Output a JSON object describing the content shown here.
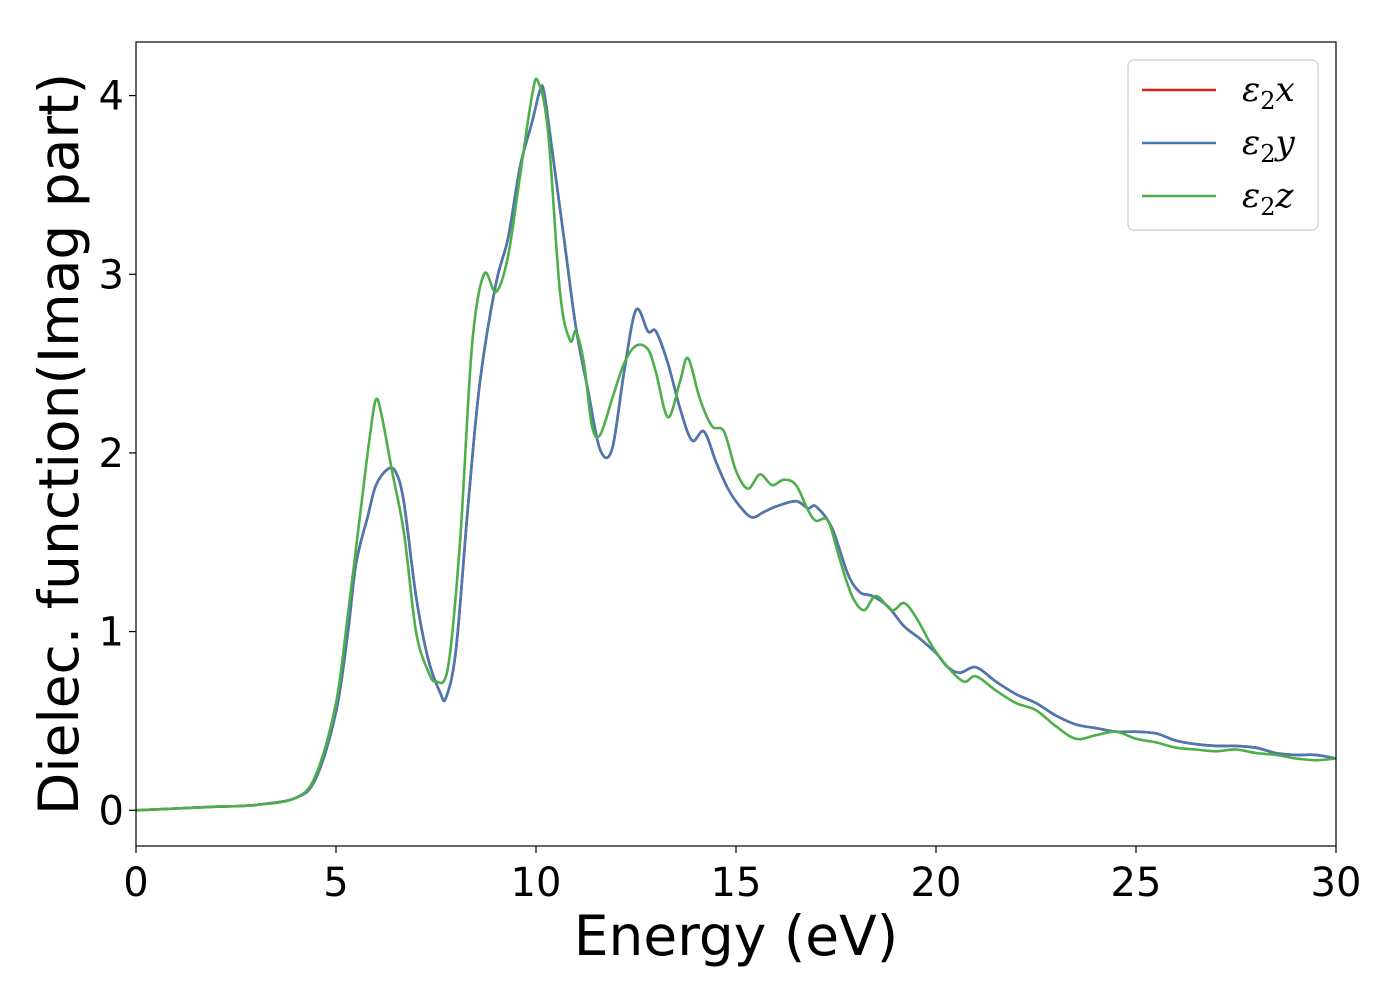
{
  "chart_data": {
    "type": "line",
    "xlabel": "Energy (eV)",
    "ylabel": "Dielec. function(Imag part)",
    "xlim": [
      0,
      30
    ],
    "ylim": [
      -0.2,
      4.3
    ],
    "xticks": [
      0,
      5,
      10,
      15,
      20,
      25,
      30
    ],
    "xtick_labels": [
      "0",
      "5",
      "10",
      "15",
      "20",
      "25",
      "30"
    ],
    "yticks": [
      0,
      1,
      2,
      3,
      4
    ],
    "ytick_labels": [
      "0",
      "1",
      "2",
      "3",
      "4"
    ],
    "grid": false,
    "legend_position": "top-right",
    "series": [
      {
        "key": "x",
        "name": "ε2x",
        "legend": {
          "symbol": "ε",
          "sub": "2",
          "axis": "x"
        },
        "color": "#e41a1c",
        "points": [
          [
            0,
            0.0
          ],
          [
            1,
            0.01
          ],
          [
            2,
            0.02
          ],
          [
            3,
            0.03
          ],
          [
            4,
            0.07
          ],
          [
            4.5,
            0.18
          ],
          [
            5,
            0.55
          ],
          [
            5.3,
            1.0
          ],
          [
            5.5,
            1.38
          ],
          [
            5.8,
            1.65
          ],
          [
            6.0,
            1.82
          ],
          [
            6.3,
            1.91
          ],
          [
            6.5,
            1.89
          ],
          [
            6.7,
            1.72
          ],
          [
            7.0,
            1.2
          ],
          [
            7.3,
            0.85
          ],
          [
            7.6,
            0.66
          ],
          [
            7.75,
            0.63
          ],
          [
            8.0,
            0.9
          ],
          [
            8.3,
            1.7
          ],
          [
            8.6,
            2.4
          ],
          [
            9.0,
            2.95
          ],
          [
            9.3,
            3.2
          ],
          [
            9.6,
            3.6
          ],
          [
            9.9,
            3.85
          ],
          [
            10.1,
            4.03
          ],
          [
            10.2,
            4.02
          ],
          [
            10.4,
            3.7
          ],
          [
            10.7,
            3.2
          ],
          [
            11.0,
            2.7
          ],
          [
            11.3,
            2.35
          ],
          [
            11.6,
            2.02
          ],
          [
            11.9,
            2.02
          ],
          [
            12.2,
            2.45
          ],
          [
            12.5,
            2.8
          ],
          [
            12.8,
            2.68
          ],
          [
            13.0,
            2.68
          ],
          [
            13.3,
            2.5
          ],
          [
            13.6,
            2.25
          ],
          [
            13.9,
            2.07
          ],
          [
            14.2,
            2.12
          ],
          [
            14.5,
            1.95
          ],
          [
            14.8,
            1.8
          ],
          [
            15.1,
            1.7
          ],
          [
            15.4,
            1.64
          ],
          [
            15.7,
            1.67
          ],
          [
            16.0,
            1.7
          ],
          [
            16.5,
            1.73
          ],
          [
            16.8,
            1.69
          ],
          [
            17.0,
            1.7
          ],
          [
            17.4,
            1.58
          ],
          [
            17.8,
            1.32
          ],
          [
            18.1,
            1.22
          ],
          [
            18.4,
            1.2
          ],
          [
            18.8,
            1.14
          ],
          [
            19.2,
            1.03
          ],
          [
            19.6,
            0.96
          ],
          [
            20.0,
            0.88
          ],
          [
            20.3,
            0.8
          ],
          [
            20.6,
            0.77
          ],
          [
            21.0,
            0.8
          ],
          [
            21.5,
            0.72
          ],
          [
            22.0,
            0.65
          ],
          [
            22.5,
            0.6
          ],
          [
            23.0,
            0.53
          ],
          [
            23.5,
            0.48
          ],
          [
            24.0,
            0.46
          ],
          [
            24.5,
            0.44
          ],
          [
            25.0,
            0.44
          ],
          [
            25.5,
            0.43
          ],
          [
            26.0,
            0.39
          ],
          [
            26.5,
            0.37
          ],
          [
            27.0,
            0.36
          ],
          [
            27.5,
            0.36
          ],
          [
            28.0,
            0.35
          ],
          [
            28.5,
            0.32
          ],
          [
            29.0,
            0.31
          ],
          [
            29.5,
            0.31
          ],
          [
            30.0,
            0.29
          ]
        ]
      },
      {
        "key": "y",
        "name": "ε2y",
        "legend": {
          "symbol": "ε",
          "sub": "2",
          "axis": "y"
        },
        "color": "#4a78b0",
        "points": [
          [
            0,
            0.0
          ],
          [
            1,
            0.01
          ],
          [
            2,
            0.02
          ],
          [
            3,
            0.03
          ],
          [
            4,
            0.07
          ],
          [
            4.5,
            0.18
          ],
          [
            5,
            0.55
          ],
          [
            5.3,
            1.0
          ],
          [
            5.5,
            1.38
          ],
          [
            5.8,
            1.65
          ],
          [
            6.0,
            1.82
          ],
          [
            6.3,
            1.91
          ],
          [
            6.5,
            1.89
          ],
          [
            6.7,
            1.72
          ],
          [
            7.0,
            1.2
          ],
          [
            7.3,
            0.85
          ],
          [
            7.6,
            0.66
          ],
          [
            7.75,
            0.63
          ],
          [
            8.0,
            0.9
          ],
          [
            8.3,
            1.7
          ],
          [
            8.6,
            2.4
          ],
          [
            9.0,
            2.95
          ],
          [
            9.3,
            3.2
          ],
          [
            9.6,
            3.6
          ],
          [
            9.9,
            3.85
          ],
          [
            10.1,
            4.03
          ],
          [
            10.2,
            4.02
          ],
          [
            10.4,
            3.7
          ],
          [
            10.7,
            3.2
          ],
          [
            11.0,
            2.7
          ],
          [
            11.3,
            2.35
          ],
          [
            11.6,
            2.02
          ],
          [
            11.9,
            2.02
          ],
          [
            12.2,
            2.45
          ],
          [
            12.5,
            2.8
          ],
          [
            12.8,
            2.68
          ],
          [
            13.0,
            2.68
          ],
          [
            13.3,
            2.5
          ],
          [
            13.6,
            2.25
          ],
          [
            13.9,
            2.07
          ],
          [
            14.2,
            2.12
          ],
          [
            14.5,
            1.95
          ],
          [
            14.8,
            1.8
          ],
          [
            15.1,
            1.7
          ],
          [
            15.4,
            1.64
          ],
          [
            15.7,
            1.67
          ],
          [
            16.0,
            1.7
          ],
          [
            16.5,
            1.73
          ],
          [
            16.8,
            1.69
          ],
          [
            17.0,
            1.7
          ],
          [
            17.4,
            1.58
          ],
          [
            17.8,
            1.32
          ],
          [
            18.1,
            1.22
          ],
          [
            18.4,
            1.2
          ],
          [
            18.8,
            1.14
          ],
          [
            19.2,
            1.03
          ],
          [
            19.6,
            0.96
          ],
          [
            20.0,
            0.88
          ],
          [
            20.3,
            0.8
          ],
          [
            20.6,
            0.77
          ],
          [
            21.0,
            0.8
          ],
          [
            21.5,
            0.72
          ],
          [
            22.0,
            0.65
          ],
          [
            22.5,
            0.6
          ],
          [
            23.0,
            0.53
          ],
          [
            23.5,
            0.48
          ],
          [
            24.0,
            0.46
          ],
          [
            24.5,
            0.44
          ],
          [
            25.0,
            0.44
          ],
          [
            25.5,
            0.43
          ],
          [
            26.0,
            0.39
          ],
          [
            26.5,
            0.37
          ],
          [
            27.0,
            0.36
          ],
          [
            27.5,
            0.36
          ],
          [
            28.0,
            0.35
          ],
          [
            28.5,
            0.32
          ],
          [
            29.0,
            0.31
          ],
          [
            29.5,
            0.31
          ],
          [
            30.0,
            0.29
          ]
        ]
      },
      {
        "key": "z",
        "name": "ε2z",
        "legend": {
          "symbol": "ε",
          "sub": "2",
          "axis": "z"
        },
        "color": "#4daf4a",
        "points": [
          [
            0,
            0.0
          ],
          [
            1,
            0.01
          ],
          [
            2,
            0.02
          ],
          [
            3,
            0.03
          ],
          [
            4,
            0.07
          ],
          [
            4.5,
            0.2
          ],
          [
            5,
            0.6
          ],
          [
            5.3,
            1.1
          ],
          [
            5.6,
            1.65
          ],
          [
            5.85,
            2.1
          ],
          [
            6.0,
            2.3
          ],
          [
            6.15,
            2.2
          ],
          [
            6.4,
            1.9
          ],
          [
            6.7,
            1.55
          ],
          [
            7.0,
            1.0
          ],
          [
            7.3,
            0.78
          ],
          [
            7.5,
            0.72
          ],
          [
            7.8,
            0.8
          ],
          [
            8.1,
            1.5
          ],
          [
            8.4,
            2.6
          ],
          [
            8.7,
            3.0
          ],
          [
            9.0,
            2.9
          ],
          [
            9.3,
            3.1
          ],
          [
            9.6,
            3.55
          ],
          [
            9.9,
            4.0
          ],
          [
            10.05,
            4.08
          ],
          [
            10.3,
            3.8
          ],
          [
            10.6,
            2.9
          ],
          [
            10.85,
            2.63
          ],
          [
            11.0,
            2.68
          ],
          [
            11.2,
            2.5
          ],
          [
            11.4,
            2.15
          ],
          [
            11.6,
            2.1
          ],
          [
            11.9,
            2.3
          ],
          [
            12.2,
            2.5
          ],
          [
            12.5,
            2.6
          ],
          [
            12.8,
            2.58
          ],
          [
            13.0,
            2.45
          ],
          [
            13.3,
            2.2
          ],
          [
            13.6,
            2.4
          ],
          [
            13.8,
            2.53
          ],
          [
            14.1,
            2.3
          ],
          [
            14.4,
            2.15
          ],
          [
            14.7,
            2.12
          ],
          [
            15.0,
            1.9
          ],
          [
            15.3,
            1.8
          ],
          [
            15.6,
            1.88
          ],
          [
            15.9,
            1.82
          ],
          [
            16.2,
            1.85
          ],
          [
            16.5,
            1.82
          ],
          [
            16.8,
            1.68
          ],
          [
            17.0,
            1.62
          ],
          [
            17.3,
            1.62
          ],
          [
            17.6,
            1.4
          ],
          [
            17.9,
            1.2
          ],
          [
            18.2,
            1.12
          ],
          [
            18.5,
            1.2
          ],
          [
            18.9,
            1.12
          ],
          [
            19.2,
            1.16
          ],
          [
            19.5,
            1.08
          ],
          [
            19.9,
            0.92
          ],
          [
            20.3,
            0.8
          ],
          [
            20.7,
            0.72
          ],
          [
            21.0,
            0.75
          ],
          [
            21.5,
            0.67
          ],
          [
            22.0,
            0.6
          ],
          [
            22.5,
            0.56
          ],
          [
            23.0,
            0.47
          ],
          [
            23.5,
            0.4
          ],
          [
            24.0,
            0.42
          ],
          [
            24.5,
            0.44
          ],
          [
            25.0,
            0.4
          ],
          [
            25.5,
            0.38
          ],
          [
            26.0,
            0.35
          ],
          [
            26.5,
            0.34
          ],
          [
            27.0,
            0.33
          ],
          [
            27.5,
            0.34
          ],
          [
            28.0,
            0.32
          ],
          [
            28.5,
            0.31
          ],
          [
            29.0,
            0.29
          ],
          [
            29.5,
            0.28
          ],
          [
            30.0,
            0.29
          ]
        ]
      }
    ]
  }
}
